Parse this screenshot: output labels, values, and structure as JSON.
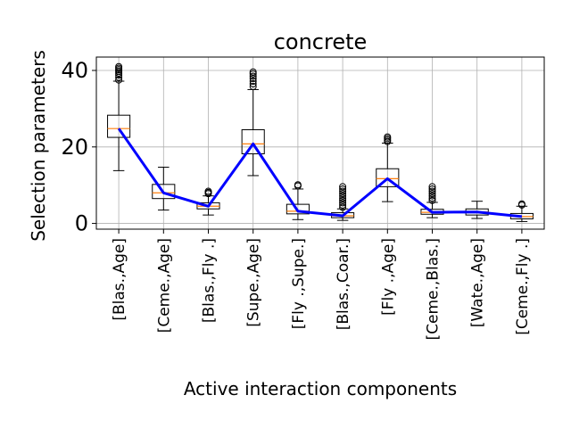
{
  "chart_data": {
    "type": "box",
    "title": "concrete",
    "xlabel": "Active interaction components",
    "ylabel": "Selection parameters",
    "ylim": [
      -1.5,
      43.5
    ],
    "yticks": [
      0,
      20,
      40
    ],
    "grid": true,
    "categories": [
      "[Blas.,Age]",
      "[Ceme.,Age]",
      "[Blas.,Fly .]",
      "[Supe.,Age]",
      "[Fly .,Supe.]",
      "[Blas.,Coar.]",
      "[Fly .,Age]",
      "[Ceme.,Blas.]",
      "[Wate.,Age]",
      "[Ceme.,Fly .]"
    ],
    "boxes": [
      {
        "whisker_low": 13.8,
        "q1": 22.5,
        "median": 24.8,
        "q3": 28.3,
        "whisker_high": 37.2,
        "outliers": [
          37.5,
          38.2,
          38.8,
          39.3,
          39.8,
          40.2,
          40.6,
          41.0
        ]
      },
      {
        "whisker_low": 3.5,
        "q1": 6.5,
        "median": 8.0,
        "q3": 10.2,
        "whisker_high": 14.7,
        "outliers": []
      },
      {
        "whisker_low": 2.2,
        "q1": 3.8,
        "median": 4.5,
        "q3": 5.4,
        "whisker_high": 7.2,
        "outliers": [
          7.8,
          8.1,
          8.4
        ]
      },
      {
        "whisker_low": 12.5,
        "q1": 18.2,
        "median": 20.8,
        "q3": 24.5,
        "whisker_high": 35.0,
        "outliers": [
          35.8,
          36.5,
          37.2,
          37.9,
          38.5,
          39.1,
          39.6
        ]
      },
      {
        "whisker_low": 1.0,
        "q1": 2.5,
        "median": 3.2,
        "q3": 5.0,
        "whisker_high": 9.0,
        "outliers": [
          9.8,
          10.1
        ]
      },
      {
        "whisker_low": 0.8,
        "q1": 1.5,
        "median": 2.0,
        "q3": 2.8,
        "whisker_high": 3.8,
        "outliers": [
          4.2,
          4.8,
          5.4,
          6.0,
          6.6,
          7.2,
          7.8,
          8.4,
          9.0,
          9.6
        ]
      },
      {
        "whisker_low": 5.7,
        "q1": 9.6,
        "median": 11.7,
        "q3": 14.3,
        "whisker_high": 21.0,
        "outliers": [
          21.4,
          21.8,
          22.2,
          22.6
        ]
      },
      {
        "whisker_low": 1.5,
        "q1": 2.4,
        "median": 2.9,
        "q3": 3.7,
        "whisker_high": 5.5,
        "outliers": [
          6.0,
          6.6,
          7.2,
          7.8,
          8.4,
          9.0,
          9.6
        ]
      },
      {
        "whisker_low": 1.3,
        "q1": 2.2,
        "median": 3.0,
        "q3": 3.8,
        "whisker_high": 5.8,
        "outliers": []
      },
      {
        "whisker_low": 0.5,
        "q1": 1.2,
        "median": 1.8,
        "q3": 2.6,
        "whisker_high": 4.5,
        "outliers": [
          4.8,
          5.1
        ]
      }
    ],
    "line": {
      "values": [
        24.8,
        8.0,
        4.5,
        20.8,
        3.2,
        2.0,
        11.7,
        2.9,
        3.0,
        1.8
      ],
      "color": "#0000ff"
    },
    "median_color": "#ff7f0e",
    "grid_color": "#b0b0b0"
  }
}
